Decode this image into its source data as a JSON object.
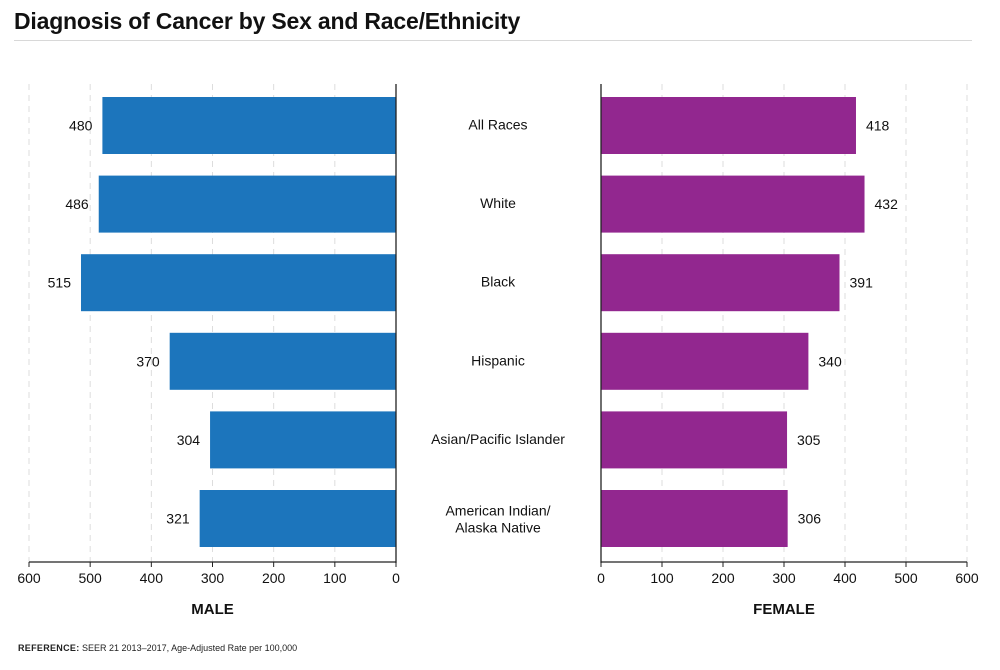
{
  "title": "Diagnosis of Cancer by Sex and Race/Ethnicity",
  "reference": {
    "label": "REFERENCE:",
    "text": "SEER 21 2013–2017, Age-Adjusted Rate per 100,000"
  },
  "colors": {
    "male": "#1c75bc",
    "female": "#92278f"
  },
  "chart_data": [
    {
      "type": "bar",
      "orientation": "horizontal",
      "direction": "right-to-left",
      "title": "",
      "xlabel": "MALE",
      "categories": [
        "All Races",
        "White",
        "Black",
        "Hispanic",
        "Asian/Pacific Islander",
        "American Indian/ Alaska Native"
      ],
      "values": [
        480,
        486,
        515,
        370,
        304,
        321
      ],
      "xlim": [
        0,
        600
      ],
      "ticks": [
        600,
        500,
        400,
        300,
        200,
        100,
        0
      ],
      "grid": true
    },
    {
      "type": "bar",
      "orientation": "horizontal",
      "direction": "left-to-right",
      "title": "",
      "xlabel": "FEMALE",
      "categories": [
        "All Races",
        "White",
        "Black",
        "Hispanic",
        "Asian/Pacific Islander",
        "American Indian/ Alaska Native"
      ],
      "values": [
        418,
        432,
        391,
        340,
        305,
        306
      ],
      "xlim": [
        0,
        600
      ],
      "ticks": [
        0,
        100,
        200,
        300,
        400,
        500,
        600
      ],
      "grid": true
    }
  ]
}
